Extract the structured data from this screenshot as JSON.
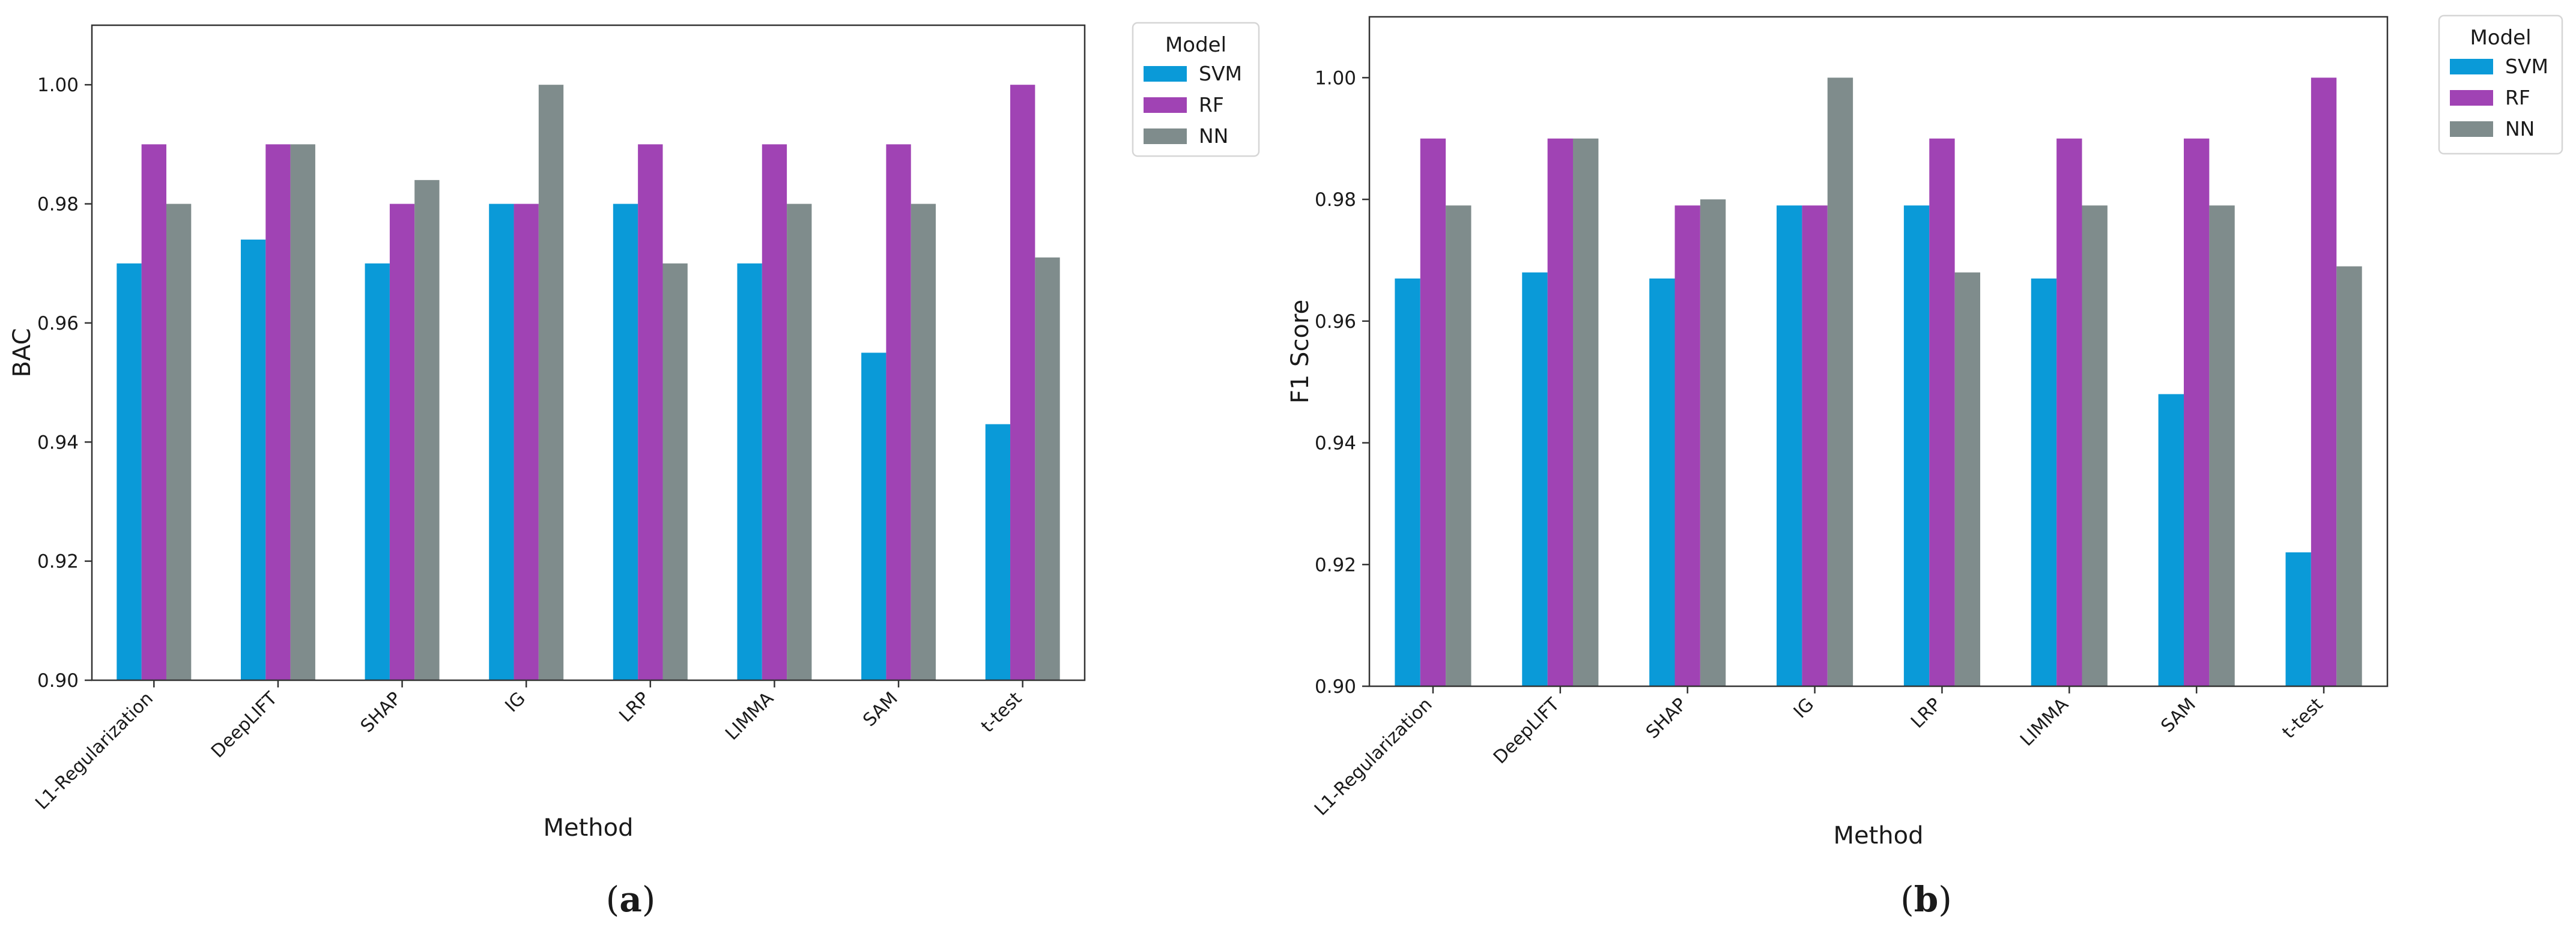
{
  "colors": {
    "SVM": "#0a9ad8",
    "RF": "#a043b4",
    "NN": "#7f8c8c"
  },
  "panels": [
    {
      "caption_open": "(",
      "caption_letter": "a",
      "caption_close": ")"
    },
    {
      "caption_open": "(",
      "caption_letter": "b",
      "caption_close": ")"
    }
  ],
  "chart_data": [
    {
      "type": "bar",
      "title": "",
      "xlabel": "Method",
      "ylabel": "BAC",
      "ylim": [
        0.9,
        1.01
      ],
      "yticks": [
        0.9,
        0.92,
        0.94,
        0.96,
        0.98,
        1.0
      ],
      "ytick_labels": [
        "0.90",
        "0.92",
        "0.94",
        "0.96",
        "0.98",
        "1.00"
      ],
      "categories": [
        "L1-Regularization",
        "DeepLIFT",
        "SHAP",
        "IG",
        "LRP",
        "LIMMA",
        "SAM",
        "t-test"
      ],
      "legend_title": "Model",
      "legend_position": "outside-top-right",
      "series": [
        {
          "name": "SVM",
          "values": [
            0.97,
            0.974,
            0.97,
            0.98,
            0.98,
            0.97,
            0.955,
            0.943
          ]
        },
        {
          "name": "RF",
          "values": [
            0.99,
            0.99,
            0.98,
            0.98,
            0.99,
            0.99,
            0.99,
            1.0
          ]
        },
        {
          "name": "NN",
          "values": [
            0.98,
            0.99,
            0.984,
            1.0,
            0.97,
            0.98,
            0.98,
            0.971
          ]
        }
      ]
    },
    {
      "type": "bar",
      "title": "",
      "xlabel": "Method",
      "ylabel": "F1 Score",
      "ylim": [
        0.9,
        1.01
      ],
      "yticks": [
        0.9,
        0.92,
        0.94,
        0.96,
        0.98,
        1.0
      ],
      "ytick_labels": [
        "0.90",
        "0.92",
        "0.94",
        "0.96",
        "0.98",
        "1.00"
      ],
      "categories": [
        "L1-Regularization",
        "DeepLIFT",
        "SHAP",
        "IG",
        "LRP",
        "LIMMA",
        "SAM",
        "t-test"
      ],
      "legend_title": "Model",
      "legend_position": "outside-top-right",
      "series": [
        {
          "name": "SVM",
          "values": [
            0.967,
            0.968,
            0.967,
            0.979,
            0.979,
            0.967,
            0.948,
            0.922
          ]
        },
        {
          "name": "RF",
          "values": [
            0.99,
            0.99,
            0.979,
            0.979,
            0.99,
            0.99,
            0.99,
            1.0
          ]
        },
        {
          "name": "NN",
          "values": [
            0.979,
            0.99,
            0.98,
            1.0,
            0.968,
            0.979,
            0.979,
            0.969
          ]
        }
      ]
    }
  ]
}
